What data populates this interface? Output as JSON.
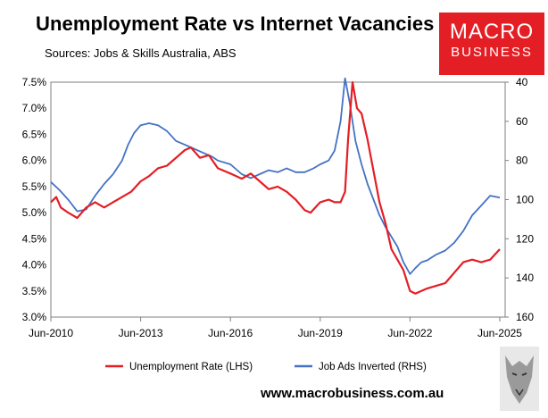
{
  "header": {
    "title": "Unemployment Rate vs Internet Vacancies",
    "subtitle": "Sources: Jobs & Skills Australia, ABS"
  },
  "logo": {
    "line1": "MACRO",
    "line2": "BUSINESS"
  },
  "footer": {
    "website": "www.macrobusiness.com.au"
  },
  "colors": {
    "unemployment": "#e31e24",
    "job_ads": "#4472c4",
    "logo_bg": "#e31e24"
  },
  "chart_data": {
    "type": "line",
    "title": "Unemployment Rate vs Internet Vacancies",
    "x_ticks": [
      "Jun-2010",
      "Jun-2013",
      "Jun-2016",
      "Jun-2019",
      "Jun-2022",
      "Jun-2025"
    ],
    "x_range": [
      2010.42,
      2025.6
    ],
    "left_axis": {
      "ticks": [
        "7.5%",
        "7.0%",
        "6.5%",
        "6.0%",
        "5.5%",
        "5.0%",
        "4.5%",
        "4.0%",
        "3.5%",
        "3.0%"
      ],
      "ylim": [
        3.0,
        7.5
      ]
    },
    "right_axis": {
      "ticks": [
        "40",
        "60",
        "80",
        "100",
        "120",
        "140",
        "160"
      ],
      "ylim": [
        160,
        40
      ],
      "inverted": true
    },
    "grid": false,
    "legend_position": "bottom",
    "series": [
      {
        "name": "Unemployment Rate (LHS)",
        "axis": "left",
        "points": [
          [
            2010.42,
            5.2
          ],
          [
            2010.6,
            5.3
          ],
          [
            2010.75,
            5.1
          ],
          [
            2011.0,
            5.0
          ],
          [
            2011.3,
            4.9
          ],
          [
            2011.6,
            5.1
          ],
          [
            2011.9,
            5.2
          ],
          [
            2012.2,
            5.1
          ],
          [
            2012.5,
            5.2
          ],
          [
            2012.8,
            5.3
          ],
          [
            2013.1,
            5.4
          ],
          [
            2013.42,
            5.6
          ],
          [
            2013.7,
            5.7
          ],
          [
            2014.0,
            5.85
          ],
          [
            2014.3,
            5.9
          ],
          [
            2014.6,
            6.05
          ],
          [
            2014.9,
            6.2
          ],
          [
            2015.1,
            6.25
          ],
          [
            2015.4,
            6.05
          ],
          [
            2015.7,
            6.1
          ],
          [
            2016.0,
            5.85
          ],
          [
            2016.42,
            5.75
          ],
          [
            2016.8,
            5.65
          ],
          [
            2017.1,
            5.75
          ],
          [
            2017.4,
            5.6
          ],
          [
            2017.7,
            5.45
          ],
          [
            2018.0,
            5.5
          ],
          [
            2018.3,
            5.4
          ],
          [
            2018.6,
            5.25
          ],
          [
            2018.9,
            5.05
          ],
          [
            2019.1,
            5.0
          ],
          [
            2019.42,
            5.2
          ],
          [
            2019.7,
            5.25
          ],
          [
            2019.9,
            5.2
          ],
          [
            2020.1,
            5.2
          ],
          [
            2020.25,
            5.4
          ],
          [
            2020.35,
            6.4
          ],
          [
            2020.5,
            7.5
          ],
          [
            2020.65,
            7.0
          ],
          [
            2020.8,
            6.9
          ],
          [
            2021.0,
            6.4
          ],
          [
            2021.2,
            5.8
          ],
          [
            2021.4,
            5.2
          ],
          [
            2021.6,
            4.8
          ],
          [
            2021.8,
            4.3
          ],
          [
            2022.0,
            4.1
          ],
          [
            2022.2,
            3.9
          ],
          [
            2022.42,
            3.5
          ],
          [
            2022.6,
            3.45
          ],
          [
            2022.8,
            3.5
          ],
          [
            2023.0,
            3.55
          ],
          [
            2023.3,
            3.6
          ],
          [
            2023.6,
            3.65
          ],
          [
            2023.9,
            3.85
          ],
          [
            2024.2,
            4.05
          ],
          [
            2024.5,
            4.1
          ],
          [
            2024.8,
            4.05
          ],
          [
            2025.1,
            4.1
          ],
          [
            2025.42,
            4.3
          ]
        ]
      },
      {
        "name": "Job Ads Inverted (RHS)",
        "axis": "right",
        "points": [
          [
            2010.42,
            91
          ],
          [
            2010.7,
            95
          ],
          [
            2011.0,
            100
          ],
          [
            2011.3,
            106
          ],
          [
            2011.6,
            105
          ],
          [
            2011.9,
            98
          ],
          [
            2012.2,
            92
          ],
          [
            2012.5,
            87
          ],
          [
            2012.8,
            80
          ],
          [
            2013.0,
            72
          ],
          [
            2013.2,
            66
          ],
          [
            2013.42,
            62
          ],
          [
            2013.7,
            61
          ],
          [
            2014.0,
            62
          ],
          [
            2014.3,
            65
          ],
          [
            2014.6,
            70
          ],
          [
            2014.9,
            72
          ],
          [
            2015.2,
            74
          ],
          [
            2015.5,
            76
          ],
          [
            2015.8,
            78
          ],
          [
            2016.0,
            80
          ],
          [
            2016.42,
            82
          ],
          [
            2016.8,
            87
          ],
          [
            2017.1,
            89
          ],
          [
            2017.4,
            87
          ],
          [
            2017.7,
            85
          ],
          [
            2018.0,
            86
          ],
          [
            2018.3,
            84
          ],
          [
            2018.6,
            86
          ],
          [
            2018.9,
            86
          ],
          [
            2019.2,
            84
          ],
          [
            2019.42,
            82
          ],
          [
            2019.7,
            80
          ],
          [
            2019.9,
            75
          ],
          [
            2020.1,
            60
          ],
          [
            2020.25,
            38
          ],
          [
            2020.4,
            50
          ],
          [
            2020.6,
            70
          ],
          [
            2020.8,
            82
          ],
          [
            2021.0,
            92
          ],
          [
            2021.2,
            100
          ],
          [
            2021.4,
            108
          ],
          [
            2021.6,
            114
          ],
          [
            2021.8,
            119
          ],
          [
            2022.0,
            124
          ],
          [
            2022.2,
            132
          ],
          [
            2022.42,
            138
          ],
          [
            2022.6,
            135
          ],
          [
            2022.8,
            132
          ],
          [
            2023.0,
            131
          ],
          [
            2023.3,
            128
          ],
          [
            2023.6,
            126
          ],
          [
            2023.9,
            122
          ],
          [
            2024.2,
            116
          ],
          [
            2024.5,
            108
          ],
          [
            2024.8,
            103
          ],
          [
            2025.1,
            98
          ],
          [
            2025.42,
            99
          ]
        ]
      }
    ]
  }
}
